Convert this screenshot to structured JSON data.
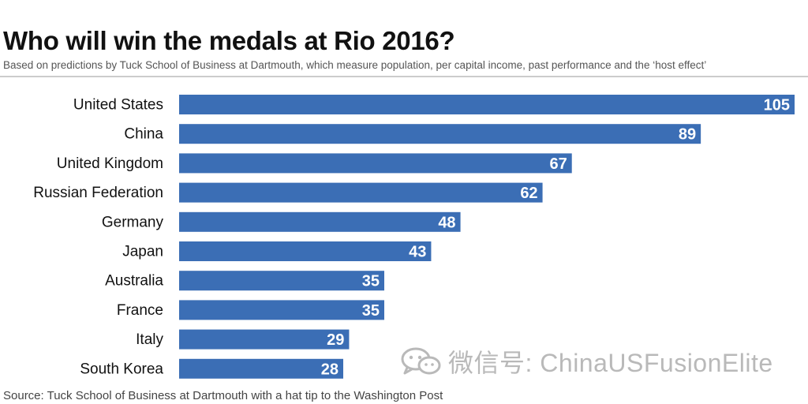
{
  "header": {
    "title": "Who will win the medals at Rio 2016?",
    "subtitle": "Based on predictions by Tuck School of Business at Dartmouth, which measure population, per capital income, past performance and the ‘host effect’"
  },
  "footer": {
    "source": "Source: Tuck School of Business at Dartmouth with a hat tip to the Washington Post"
  },
  "watermark": {
    "text": "微信号: ChinaUSFusionElite",
    "icon": "wechat-icon"
  },
  "colors": {
    "bar": "#3b6eb5",
    "bar_label": "#ffffff",
    "category_label": "#111111"
  },
  "chart_data": {
    "type": "bar",
    "orientation": "horizontal",
    "categories": [
      "United States",
      "China",
      "United Kingdom",
      "Russian Federation",
      "Germany",
      "Japan",
      "Australia",
      "France",
      "Italy",
      "South Korea"
    ],
    "values": [
      105,
      89,
      67,
      62,
      48,
      43,
      35,
      35,
      29,
      28
    ],
    "title": "Who will win the medals at Rio 2016?",
    "subtitle": "Based on predictions by Tuck School of Business at Dartmouth, which measure population, per capital income, past performance and the ‘host effect’",
    "xlabel": "",
    "ylabel": "",
    "xlim": [
      0,
      105
    ],
    "grid": false,
    "legend": "none",
    "data_labels": true
  }
}
